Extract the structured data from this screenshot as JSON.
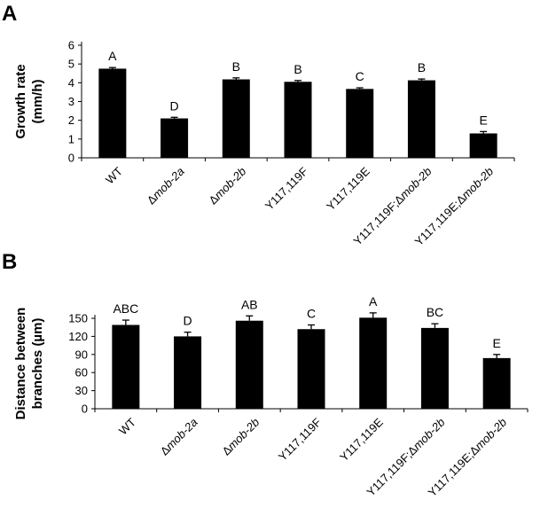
{
  "panels": [
    {
      "letter": "A"
    },
    {
      "letter": "B"
    }
  ],
  "chart_data": [
    {
      "type": "bar",
      "title": "",
      "ylabel_lines": [
        "Growth rate",
        "(mm/h)"
      ],
      "xlabel": "",
      "ylim": [
        0,
        6
      ],
      "yticks": [
        0,
        1,
        2,
        3,
        4,
        5,
        6
      ],
      "grid": false,
      "categories": [
        {
          "prefix": "",
          "italic": "",
          "text": "WT"
        },
        {
          "prefix": "Δ",
          "italic": "mob-2a",
          "text": ""
        },
        {
          "prefix": "Δ",
          "italic": "mob-2b",
          "text": ""
        },
        {
          "prefix": "Y117,119F",
          "italic": "",
          "text": ""
        },
        {
          "prefix": "Y117,119E",
          "italic": "",
          "text": ""
        },
        {
          "prefix": "Y117,119F;Δ",
          "italic": "mob-2b",
          "text": ""
        },
        {
          "prefix": "Y117,119E;Δ",
          "italic": "mob-2b",
          "text": ""
        }
      ],
      "values": [
        4.75,
        2.1,
        4.18,
        4.05,
        3.67,
        4.13,
        1.3
      ],
      "errors": [
        0.06,
        0.06,
        0.08,
        0.07,
        0.06,
        0.07,
        0.1
      ],
      "significance": [
        "A",
        "D",
        "B",
        "B",
        "C",
        "B",
        "E"
      ],
      "bar_color": "#000000"
    },
    {
      "type": "bar",
      "title": "",
      "ylabel_lines": [
        "Distance between",
        "branches (µm)"
      ],
      "xlabel": "",
      "ylim": [
        0,
        150
      ],
      "yticks": [
        0,
        30,
        60,
        90,
        120,
        150
      ],
      "grid": false,
      "categories": [
        {
          "prefix": "",
          "italic": "",
          "text": "WT"
        },
        {
          "prefix": "Δ",
          "italic": "mob-2a",
          "text": ""
        },
        {
          "prefix": "Δ",
          "italic": "mob-2b",
          "text": ""
        },
        {
          "prefix": "Y117,119F",
          "italic": "",
          "text": ""
        },
        {
          "prefix": "Y117,119E",
          "italic": "",
          "text": ""
        },
        {
          "prefix": "Y117,119F;Δ",
          "italic": "mob-2b",
          "text": ""
        },
        {
          "prefix": "Y117,119E;Δ",
          "italic": "mob-2b",
          "text": ""
        }
      ],
      "values": [
        139,
        120,
        146,
        132,
        151,
        134,
        84
      ],
      "errors": [
        8,
        7,
        8,
        7,
        8,
        7,
        6
      ],
      "significance": [
        "ABC",
        "D",
        "AB",
        "C",
        "A",
        "BC",
        "E"
      ],
      "bar_color": "#000000"
    }
  ]
}
